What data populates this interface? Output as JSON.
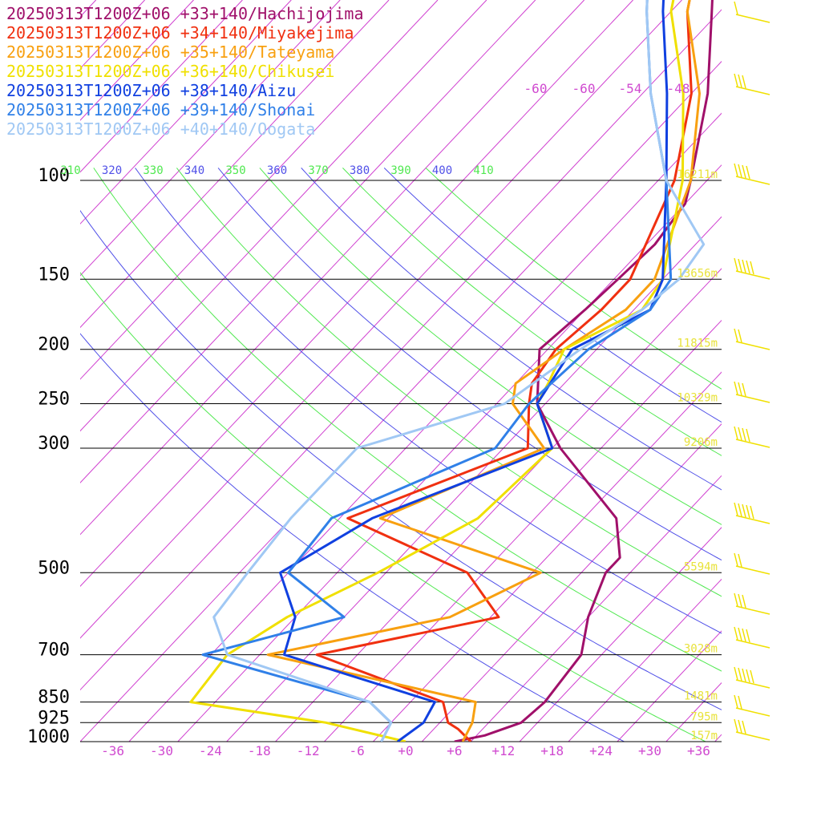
{
  "chart_data": {
    "type": "line",
    "title": "",
    "legend_position": "top-left",
    "pressure_levels": [
      100,
      150,
      200,
      250,
      300,
      500,
      700,
      850,
      925,
      1000
    ],
    "pressure_labels": [
      "100",
      "150",
      "200",
      "250",
      "300",
      "500",
      "700",
      "850",
      "925",
      "1000"
    ],
    "temperature_ticks": [
      "-36",
      "-30",
      "-24",
      "-18",
      "-12",
      "-6",
      "+0",
      "+6",
      "+12",
      "+18",
      "+24",
      "+30",
      "+36"
    ],
    "temperature_tick_values": [
      -36,
      -30,
      -24,
      -18,
      -12,
      -6,
      0,
      6,
      12,
      18,
      24,
      30,
      36
    ],
    "isotherm_labels": [
      "-60",
      "-60",
      "-54",
      "-48"
    ],
    "theta_labels": [
      "310",
      "320",
      "330",
      "340",
      "350",
      "360",
      "370",
      "380",
      "390",
      "400",
      "410"
    ],
    "height_labels": [
      {
        "p": 100,
        "text": "16211m"
      },
      {
        "p": 150,
        "text": "13656m"
      },
      {
        "p": 200,
        "text": "11815m"
      },
      {
        "p": 250,
        "text": "10329m"
      },
      {
        "p": 300,
        "text": "9206m"
      },
      {
        "p": 500,
        "text": "5594m"
      },
      {
        "p": 700,
        "text": "3028m"
      },
      {
        "p": 850,
        "text": "1481m"
      },
      {
        "p": 925,
        "text": "795m"
      },
      {
        "p": 1000,
        "text": "157m"
      }
    ],
    "series": [
      {
        "name": "20250313T1200Z+06 +33+140/Hachijojima",
        "color": "#a0106a",
        "points": [
          [
            1000,
            6
          ],
          [
            975,
            9
          ],
          [
            925,
            12
          ],
          [
            850,
            12.5
          ],
          [
            700,
            11.5
          ],
          [
            600,
            8
          ],
          [
            500,
            5
          ],
          [
            470,
            5
          ],
          [
            400,
            0
          ],
          [
            300,
            -15
          ],
          [
            250,
            -23
          ],
          [
            200,
            -29
          ],
          [
            170,
            -28
          ],
          [
            150,
            -27.5
          ],
          [
            130,
            -27
          ],
          [
            110,
            -28
          ],
          [
            100,
            -30
          ],
          [
            70,
            -38
          ],
          [
            50,
            -47
          ],
          [
            40,
            -53
          ]
        ]
      },
      {
        "name": "20250313T1200Z+06 +34+140/Miyakejima",
        "color": "#f03010",
        "points": [
          [
            1000,
            8
          ],
          [
            950,
            5
          ],
          [
            925,
            3
          ],
          [
            850,
            0
          ],
          [
            700,
            -21
          ],
          [
            600,
            -3
          ],
          [
            500,
            -12
          ],
          [
            400,
            -33
          ],
          [
            300,
            -19
          ],
          [
            250,
            -24
          ],
          [
            230,
            -26
          ],
          [
            200,
            -27
          ],
          [
            170,
            -26
          ],
          [
            150,
            -26
          ],
          [
            100,
            -32
          ],
          [
            70,
            -40
          ],
          [
            50,
            -50
          ],
          [
            40,
            -55
          ]
        ]
      },
      {
        "name": "20250313T1200Z+06 +35+140/Tateyama",
        "color": "#f8a010",
        "points": [
          [
            1000,
            7
          ],
          [
            925,
            6
          ],
          [
            850,
            4
          ],
          [
            700,
            -27
          ],
          [
            600,
            -9
          ],
          [
            500,
            -3
          ],
          [
            400,
            -29
          ],
          [
            300,
            -17
          ],
          [
            250,
            -26
          ],
          [
            230,
            -28
          ],
          [
            200,
            -26
          ],
          [
            170,
            -23
          ],
          [
            150,
            -23
          ],
          [
            100,
            -30
          ],
          [
            70,
            -39
          ],
          [
            50,
            -50
          ],
          [
            40,
            -55
          ]
        ]
      },
      {
        "name": "20250313T1200Z+06 +36+140/Chikusei",
        "color": "#f0e000",
        "points": [
          [
            1000,
            0
          ],
          [
            925,
            -12
          ],
          [
            850,
            -31
          ],
          [
            700,
            -32
          ],
          [
            600,
            -29
          ],
          [
            500,
            -23
          ],
          [
            400,
            -17
          ],
          [
            300,
            -16
          ],
          [
            250,
            -23
          ],
          [
            230,
            -24
          ],
          [
            200,
            -26
          ],
          [
            170,
            -21
          ],
          [
            150,
            -22
          ],
          [
            100,
            -31
          ],
          [
            70,
            -41
          ],
          [
            50,
            -52
          ],
          [
            40,
            -57
          ]
        ]
      },
      {
        "name": "20250313T1200Z+06 +38+140/Aizu",
        "color": "#1040e0",
        "points": [
          [
            1000,
            -1
          ],
          [
            925,
            0
          ],
          [
            850,
            -1
          ],
          [
            700,
            -25
          ],
          [
            600,
            -28
          ],
          [
            500,
            -35
          ],
          [
            400,
            -30
          ],
          [
            300,
            -16
          ],
          [
            250,
            -23
          ],
          [
            200,
            -25
          ],
          [
            170,
            -20
          ],
          [
            150,
            -22
          ],
          [
            100,
            -33
          ],
          [
            70,
            -43
          ],
          [
            50,
            -53
          ],
          [
            40,
            -59
          ]
        ]
      },
      {
        "name": "20250313T1200Z+06 +39+140/Shonai",
        "color": "#3080e8",
        "points": [
          [
            1000,
            -3
          ],
          [
            925,
            -4
          ],
          [
            850,
            -9
          ],
          [
            700,
            -35
          ],
          [
            600,
            -22
          ],
          [
            500,
            -34
          ],
          [
            400,
            -35
          ],
          [
            300,
            -23
          ],
          [
            250,
            -24
          ],
          [
            200,
            -23
          ],
          [
            170,
            -20
          ],
          [
            150,
            -21
          ],
          [
            100,
            -33
          ],
          [
            70,
            -45
          ],
          [
            50,
            -55
          ],
          [
            40,
            -61
          ]
        ]
      },
      {
        "name": "20250313T1200Z+06 +40+140/Oogata",
        "color": "#a0c8f4",
        "points": [
          [
            1000,
            -3
          ],
          [
            925,
            -4
          ],
          [
            850,
            -9
          ],
          [
            700,
            -32
          ],
          [
            600,
            -38
          ],
          [
            500,
            -39
          ],
          [
            400,
            -40
          ],
          [
            300,
            -40
          ],
          [
            250,
            -27
          ],
          [
            200,
            -24
          ],
          [
            170,
            -21
          ],
          [
            150,
            -20
          ],
          [
            130,
            -21
          ],
          [
            100,
            -33
          ],
          [
            70,
            -45
          ],
          [
            50,
            -55
          ],
          [
            40,
            -61
          ]
        ]
      }
    ],
    "wind_barb_color": "#f0e000"
  }
}
